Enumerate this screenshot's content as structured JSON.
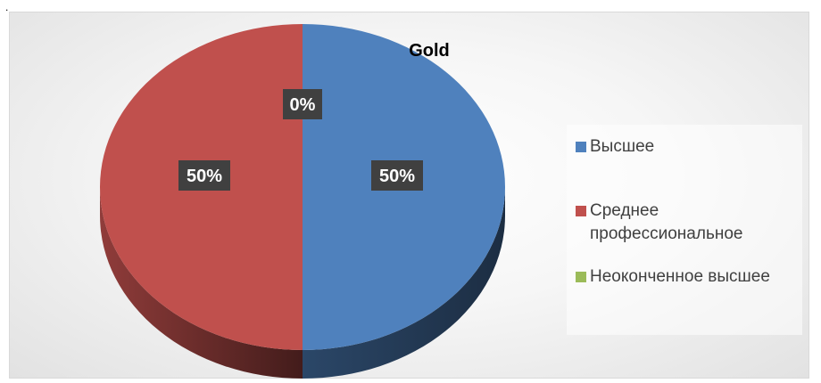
{
  "corner_mark": ".",
  "chart_data": {
    "type": "pie",
    "title": "Gold",
    "categories": [
      "Высшее",
      "Среднее профессиональное",
      "Неоконченное высшее"
    ],
    "values": [
      50,
      50,
      0
    ],
    "data_labels": [
      "50%",
      "50%",
      "0%"
    ],
    "colors": [
      "#4f81bd",
      "#c0504d",
      "#9bbb59"
    ],
    "legend_position": "right",
    "style": "3d"
  },
  "legend": [
    {
      "label": "Высшее",
      "color": "#4f81bd"
    },
    {
      "label": "Среднее профессиональное",
      "color": "#c0504d"
    },
    {
      "label": "Неоконченное высшее",
      "color": "#9bbb59"
    }
  ]
}
